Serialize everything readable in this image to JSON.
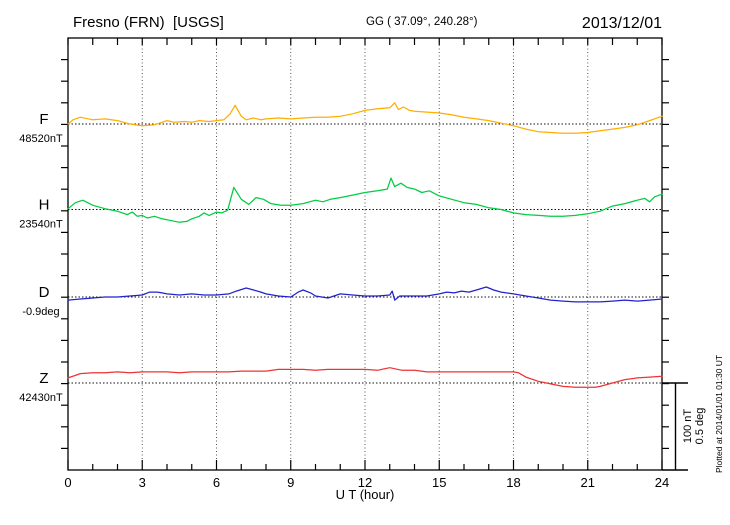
{
  "header": {
    "station_title": "Fresno (FRN)  [USGS]",
    "coords": "GG ( 37.09°, 240.28°)",
    "date": "2013/12/01"
  },
  "footnote": "Plotted at 2014/01/01 01:30 UT",
  "scale_bar": {
    "labels": [
      "100 nT",
      "0.5 deg"
    ],
    "nT_per_division": 100,
    "deg_per_division": 0.5
  },
  "chart_data": {
    "type": "line",
    "title": "Fresno (FRN) [USGS] magnetogram 2013/12/01",
    "xlabel": "U T (hour)",
    "xlim": [
      0,
      24
    ],
    "x_ticks": [
      0,
      3,
      6,
      9,
      12,
      15,
      18,
      21,
      24
    ],
    "x_minor_tick_hours": 1,
    "grid": "dotted vertical lines every 3 hours; dotted horizontal baseline per component",
    "legend_position": "left baseline labels",
    "series": [
      {
        "name": "F",
        "baseline_label": "48520nT",
        "baseline_value": 48520,
        "unit": "nT",
        "color": "#ffae00",
        "points": [
          [
            0,
            0
          ],
          [
            0.2,
            5
          ],
          [
            0.5,
            8
          ],
          [
            1,
            5
          ],
          [
            1.5,
            6
          ],
          [
            2,
            4
          ],
          [
            2.5,
            0
          ],
          [
            3,
            -2
          ],
          [
            3.5,
            -1
          ],
          [
            4,
            4
          ],
          [
            4.3,
            2
          ],
          [
            4.7,
            3
          ],
          [
            5,
            2
          ],
          [
            5.3,
            4
          ],
          [
            5.7,
            3
          ],
          [
            6,
            4
          ],
          [
            6.3,
            5
          ],
          [
            6.55,
            12
          ],
          [
            6.75,
            22
          ],
          [
            7,
            9
          ],
          [
            7.2,
            5
          ],
          [
            7.5,
            7
          ],
          [
            7.8,
            5
          ],
          [
            8,
            6
          ],
          [
            8.5,
            7
          ],
          [
            9,
            6
          ],
          [
            9.5,
            7
          ],
          [
            10,
            8
          ],
          [
            10.5,
            8
          ],
          [
            11,
            9
          ],
          [
            11.5,
            12
          ],
          [
            12,
            16
          ],
          [
            12.5,
            18
          ],
          [
            13,
            19
          ],
          [
            13.2,
            25
          ],
          [
            13.35,
            17
          ],
          [
            13.55,
            20
          ],
          [
            13.8,
            16
          ],
          [
            14,
            15
          ],
          [
            14.5,
            14
          ],
          [
            15,
            13
          ],
          [
            15.5,
            11
          ],
          [
            16,
            8
          ],
          [
            16.5,
            6
          ],
          [
            17,
            4
          ],
          [
            17.5,
            1
          ],
          [
            18,
            -2
          ],
          [
            18.5,
            -6
          ],
          [
            19,
            -9
          ],
          [
            19.5,
            -10
          ],
          [
            20,
            -11
          ],
          [
            20.5,
            -11
          ],
          [
            21,
            -10
          ],
          [
            21.5,
            -8
          ],
          [
            22,
            -6
          ],
          [
            22.5,
            -4
          ],
          [
            23,
            -1
          ],
          [
            23.5,
            4
          ],
          [
            24,
            9
          ]
        ]
      },
      {
        "name": "H",
        "baseline_label": "23540nT",
        "baseline_value": 23540,
        "unit": "nT",
        "color": "#00cc44",
        "points": [
          [
            0,
            1
          ],
          [
            0.3,
            8
          ],
          [
            0.6,
            11
          ],
          [
            1,
            5
          ],
          [
            1.5,
            1
          ],
          [
            2,
            -2
          ],
          [
            2.4,
            -6
          ],
          [
            2.6,
            -3
          ],
          [
            2.8,
            -8
          ],
          [
            3,
            -7
          ],
          [
            3.2,
            -10
          ],
          [
            3.5,
            -8
          ],
          [
            3.8,
            -11
          ],
          [
            4,
            -12
          ],
          [
            4.5,
            -15
          ],
          [
            4.8,
            -14
          ],
          [
            5,
            -11
          ],
          [
            5.3,
            -8
          ],
          [
            5.5,
            -4
          ],
          [
            5.7,
            -7
          ],
          [
            6,
            -3
          ],
          [
            6.2,
            -4
          ],
          [
            6.45,
            -1
          ],
          [
            6.7,
            26
          ],
          [
            7,
            12
          ],
          [
            7.3,
            6
          ],
          [
            7.6,
            14
          ],
          [
            7.9,
            12
          ],
          [
            8.2,
            7
          ],
          [
            8.6,
            5
          ],
          [
            9,
            5
          ],
          [
            9.5,
            7
          ],
          [
            10,
            11
          ],
          [
            10.3,
            9
          ],
          [
            10.6,
            12
          ],
          [
            11,
            14
          ],
          [
            11.5,
            17
          ],
          [
            12,
            20
          ],
          [
            12.5,
            22
          ],
          [
            12.9,
            24
          ],
          [
            13.05,
            37
          ],
          [
            13.2,
            27
          ],
          [
            13.45,
            31
          ],
          [
            13.7,
            26
          ],
          [
            14,
            24
          ],
          [
            14.3,
            20
          ],
          [
            14.6,
            22
          ],
          [
            15,
            16
          ],
          [
            15.5,
            12
          ],
          [
            16,
            8
          ],
          [
            16.5,
            6
          ],
          [
            17,
            2
          ],
          [
            17.5,
            0
          ],
          [
            18,
            -4
          ],
          [
            18.5,
            -6
          ],
          [
            19,
            -7
          ],
          [
            19.5,
            -8
          ],
          [
            20,
            -8
          ],
          [
            20.5,
            -7
          ],
          [
            21,
            -5
          ],
          [
            21.5,
            -2
          ],
          [
            22,
            4
          ],
          [
            22.5,
            7
          ],
          [
            23,
            11
          ],
          [
            23.3,
            13
          ],
          [
            23.5,
            9
          ],
          [
            23.7,
            15
          ],
          [
            24,
            18
          ]
        ]
      },
      {
        "name": "D",
        "baseline_label": "-0.9deg",
        "baseline_value": -0.9,
        "unit": "deg",
        "color": "#2222cc",
        "points": [
          [
            0,
            -0.018
          ],
          [
            0.5,
            -0.012
          ],
          [
            1,
            -0.006
          ],
          [
            1.5,
            0
          ],
          [
            2,
            0
          ],
          [
            2.5,
            0.006
          ],
          [
            3,
            0.012
          ],
          [
            3.3,
            0.029
          ],
          [
            3.6,
            0.029
          ],
          [
            3.8,
            0.024
          ],
          [
            4,
            0.018
          ],
          [
            4.5,
            0.012
          ],
          [
            5,
            0.018
          ],
          [
            5.5,
            0.012
          ],
          [
            6,
            0.012
          ],
          [
            6.5,
            0.018
          ],
          [
            6.8,
            0.035
          ],
          [
            7.2,
            0.053
          ],
          [
            7.5,
            0.041
          ],
          [
            7.8,
            0.029
          ],
          [
            8,
            0.018
          ],
          [
            8.5,
            0.006
          ],
          [
            9,
            0
          ],
          [
            9.3,
            0.029
          ],
          [
            9.5,
            0.041
          ],
          [
            9.8,
            0.024
          ],
          [
            10,
            0.006
          ],
          [
            10.5,
            -0.006
          ],
          [
            11,
            0.018
          ],
          [
            11.5,
            0.012
          ],
          [
            12,
            0.006
          ],
          [
            12.5,
            0.006
          ],
          [
            13,
            0.012
          ],
          [
            13.1,
            0.035
          ],
          [
            13.2,
            -0.018
          ],
          [
            13.4,
            0.006
          ],
          [
            14,
            0.006
          ],
          [
            14.5,
            0.006
          ],
          [
            15,
            0.018
          ],
          [
            15.3,
            0.029
          ],
          [
            15.6,
            0.024
          ],
          [
            15.9,
            0.035
          ],
          [
            16.2,
            0.029
          ],
          [
            16.5,
            0.041
          ],
          [
            16.9,
            0.059
          ],
          [
            17.2,
            0.041
          ],
          [
            17.5,
            0.029
          ],
          [
            18,
            0.018
          ],
          [
            18.5,
            0.006
          ],
          [
            19,
            -0.006
          ],
          [
            19.5,
            -0.018
          ],
          [
            20,
            -0.024
          ],
          [
            20.5,
            -0.029
          ],
          [
            21,
            -0.029
          ],
          [
            21.5,
            -0.029
          ],
          [
            22,
            -0.024
          ],
          [
            22.5,
            -0.018
          ],
          [
            23,
            -0.024
          ],
          [
            23.5,
            -0.018
          ],
          [
            24,
            -0.012
          ]
        ]
      },
      {
        "name": "Z",
        "baseline_label": "42430nT",
        "baseline_value": 42430,
        "unit": "nT",
        "color": "#ee3333",
        "points": [
          [
            0,
            6
          ],
          [
            0.3,
            9
          ],
          [
            0.5,
            11
          ],
          [
            1,
            12
          ],
          [
            1.5,
            12
          ],
          [
            2,
            13
          ],
          [
            2.5,
            12
          ],
          [
            3,
            13
          ],
          [
            3.5,
            13
          ],
          [
            4,
            13
          ],
          [
            4.5,
            12
          ],
          [
            5,
            13
          ],
          [
            5.5,
            13
          ],
          [
            6,
            13
          ],
          [
            6.5,
            13
          ],
          [
            7,
            14
          ],
          [
            7.5,
            14
          ],
          [
            8,
            14
          ],
          [
            8.5,
            16
          ],
          [
            9,
            16
          ],
          [
            9.5,
            16
          ],
          [
            10,
            15
          ],
          [
            10.5,
            16
          ],
          [
            11,
            16
          ],
          [
            11.5,
            16
          ],
          [
            12,
            16
          ],
          [
            12.5,
            15
          ],
          [
            13,
            18
          ],
          [
            13.5,
            15
          ],
          [
            14,
            15
          ],
          [
            14.5,
            13
          ],
          [
            15,
            13
          ],
          [
            15.5,
            13
          ],
          [
            16,
            13
          ],
          [
            16.5,
            13
          ],
          [
            17,
            13
          ],
          [
            17.5,
            13
          ],
          [
            18,
            13
          ],
          [
            18.2,
            12
          ],
          [
            18.5,
            7
          ],
          [
            19,
            2
          ],
          [
            19.5,
            -1
          ],
          [
            20,
            -4
          ],
          [
            20.5,
            -5
          ],
          [
            21,
            -5
          ],
          [
            21.3,
            -5
          ],
          [
            21.5,
            -4
          ],
          [
            22,
            0
          ],
          [
            22.5,
            4
          ],
          [
            23,
            6
          ],
          [
            23.5,
            7
          ],
          [
            24,
            8
          ]
        ]
      }
    ]
  }
}
